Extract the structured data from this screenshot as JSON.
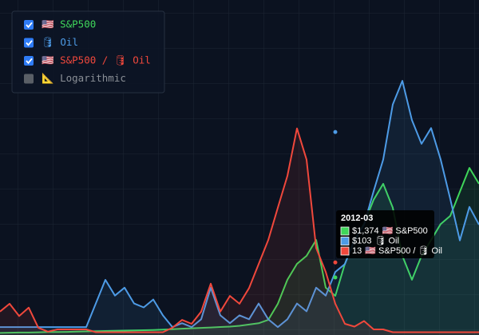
{
  "chart_data": {
    "type": "line",
    "grid": true,
    "log_scale": false,
    "log_label": "📐 Logarithmic",
    "series": [
      {
        "name": "🇺🇸 S&P500",
        "color": "#3fd65a",
        "ylim": [
          0,
          8000
        ],
        "values": [
          50,
          55,
          60,
          60,
          65,
          70,
          70,
          75,
          80,
          85,
          90,
          95,
          100,
          105,
          110,
          115,
          120,
          130,
          140,
          150,
          160,
          170,
          180,
          190,
          200,
          220,
          250,
          280,
          360,
          745,
          1320,
          1700,
          1890,
          2270,
          1130,
          935,
          1700,
          2270,
          2650,
          3230,
          3610,
          3040,
          1890,
          1320,
          1890,
          2270,
          2650,
          2845,
          3420,
          3990,
          3610
        ]
      },
      {
        "name": "🛢 Oil",
        "color": "#4d9be6",
        "ylim": [
          0,
          170
        ],
        "values": [
          4,
          4,
          4,
          4,
          4,
          4,
          4,
          4,
          4,
          4,
          16,
          28,
          20,
          24,
          16,
          14,
          18,
          10,
          4,
          6,
          4,
          8,
          24,
          10,
          6,
          10,
          8,
          16,
          8,
          4,
          8,
          16,
          12,
          24,
          20,
          32,
          36,
          48,
          56,
          73,
          89,
          117,
          129,
          109,
          97,
          105,
          89,
          69,
          48,
          65,
          56
        ]
      },
      {
        "name": "🇺🇸 S&P500 / 🛢 Oil",
        "color": "#f0483c",
        "ylim": [
          0,
          60
        ],
        "values": [
          4.2,
          5.6,
          3.4,
          4.9,
          1.3,
          0.6,
          1,
          1,
          1,
          1,
          0.5,
          0.5,
          0.5,
          0.5,
          0.5,
          0.5,
          0.5,
          0.5,
          1.3,
          2.7,
          2,
          4.2,
          9.2,
          4.2,
          7,
          5.6,
          8.4,
          12.7,
          17,
          22.8,
          28.5,
          37,
          31.4,
          15.6,
          11.3,
          5.6,
          2,
          1.5,
          2.5,
          1,
          1,
          0.5,
          0.5,
          0.5,
          0.5,
          0.5,
          0.5,
          0.5,
          0.5,
          0.5,
          0.5
        ]
      }
    ],
    "tooltip": {
      "x": "2012-03",
      "values": [
        1374,
        103,
        13
      ],
      "value_labels": [
        "$1,374",
        "$103",
        "13"
      ]
    }
  }
}
